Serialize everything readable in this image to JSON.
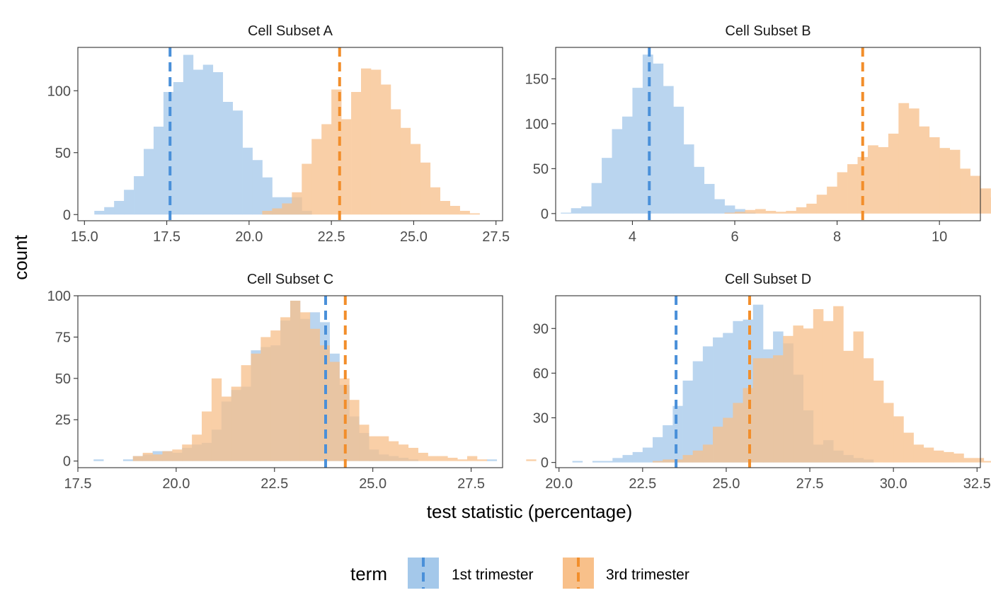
{
  "chart_data": {
    "type": "histogram",
    "xlabel": "test statistic (percentage)",
    "ylabel": "count",
    "legend": {
      "title": "term",
      "position": "bottom",
      "entries": [
        {
          "label": "1st trimester",
          "fill": "#a4c8ea",
          "line": "#4a90d9"
        },
        {
          "label": "3rd trimester",
          "fill": "#f8c08a",
          "line": "#f28e2b"
        }
      ]
    },
    "grid": false,
    "panels": [
      {
        "title": "Cell Subset A",
        "xlim": [
          14.8,
          27.7
        ],
        "ylim": [
          -5,
          135
        ],
        "xticks": [
          15.0,
          17.5,
          20.0,
          22.5,
          25.0,
          27.5
        ],
        "xtick_labels": [
          "15.0",
          "17.5",
          "20.0",
          "22.5",
          "25.0",
          "27.5"
        ],
        "yticks": [
          0,
          50,
          100
        ],
        "bin_width": 0.3,
        "series": [
          {
            "name": "1st trimester",
            "start": 15.3,
            "counts": [
              3,
              6,
              11,
              20,
              31,
              53,
              71,
              99,
              107,
              129,
              117,
              121,
              115,
              91,
              84,
              54,
              44,
              30,
              14,
              14,
              14,
              3
            ],
            "mean": 17.6
          },
          {
            "name": "3rd trimester",
            "start": 20.4,
            "counts": [
              3,
              5,
              9,
              18,
              41,
              61,
              73,
              101,
              77,
              99,
              118,
              117,
              105,
              85,
              70,
              57,
              42,
              22,
              11,
              7,
              3,
              1
            ],
            "mean": 22.75
          }
        ]
      },
      {
        "title": "Cell Subset B",
        "xlim": [
          2.5,
          10.8
        ],
        "ylim": [
          -8,
          185
        ],
        "xticks": [
          4,
          6,
          8,
          10
        ],
        "xtick_labels": [
          "4",
          "6",
          "8",
          "10"
        ],
        "yticks": [
          0,
          50,
          100,
          150
        ],
        "bin_width": 0.2,
        "series": [
          {
            "name": "1st trimester",
            "start": 2.6,
            "counts": [
              1,
              6,
              8,
              34,
              62,
              94,
              108,
              140,
              177,
              167,
              142,
              119,
              77,
              52,
              33,
              16,
              9,
              5,
              1
            ],
            "mean": 4.33
          },
          {
            "name": "3rd trimester",
            "start": 5.8,
            "counts": [
              1,
              2,
              4,
              5,
              3,
              2,
              3,
              7,
              11,
              21,
              30,
              46,
              55,
              63,
              76,
              74,
              89,
              123,
              117,
              97,
              85,
              73,
              71,
              50,
              42,
              28,
              18,
              10,
              3,
              1
            ],
            "mean": 8.5
          }
        ]
      },
      {
        "title": "Cell Subset C",
        "xlim": [
          17.5,
          28.3
        ],
        "ylim": [
          -4,
          100
        ],
        "xticks": [
          17.5,
          20.0,
          22.5,
          25.0,
          27.5
        ],
        "xtick_labels": [
          "17.5",
          "20.0",
          "22.5",
          "25.0",
          "27.5"
        ],
        "yticks": [
          0,
          25,
          50,
          75,
          100
        ],
        "bin_width": 0.25,
        "series": [
          {
            "name": "1st trimester",
            "start": 17.9,
            "counts": [
              1,
              0,
              0,
              1,
              3,
              4,
              6,
              6,
              5,
              8,
              10,
              11,
              19,
              36,
              43,
              45,
              67,
              69,
              70,
              85,
              97,
              86,
              90,
              84,
              65,
              46,
              27,
              17,
              7,
              4,
              3,
              2,
              1,
              0,
              0,
              0,
              0,
              0,
              0,
              0,
              1
            ],
            "mean": 23.8
          },
          {
            "name": "3rd trimester",
            "start": 18.9,
            "counts": [
              3,
              5,
              4,
              6,
              7,
              10,
              16,
              30,
              50,
              39,
              45,
              58,
              65,
              75,
              79,
              87,
              97,
              90,
              80,
              70,
              60,
              50,
              37,
              22,
              15,
              15,
              12,
              10,
              8,
              5,
              3,
              3,
              2,
              1,
              3,
              1,
              0,
              0,
              0,
              0,
              1
            ],
            "mean": 24.3
          }
        ]
      },
      {
        "title": "Cell Subset D",
        "xlim": [
          19.9,
          32.6
        ],
        "ylim": [
          -3.5,
          112
        ],
        "xticks": [
          20.0,
          22.5,
          25.0,
          27.5,
          30.0,
          32.5
        ],
        "xtick_labels": [
          "20.0",
          "22.5",
          "25.0",
          "27.5",
          "30.0",
          "32.5"
        ],
        "yticks": [
          0,
          30,
          60,
          90
        ],
        "bin_width": 0.3,
        "series": [
          {
            "name": "1st trimester",
            "start": 20.4,
            "counts": [
              1,
              0,
              1,
              1,
              3,
              5,
              7,
              10,
              17,
              25,
              38,
              55,
              68,
              78,
              84,
              87,
              95,
              96,
              106,
              76,
              88,
              80,
              59,
              35,
              12,
              15,
              8,
              5,
              3,
              2
            ],
            "mean": 23.5
          },
          {
            "name": "3rd trimester",
            "start": 22.8,
            "counts": [
              1,
              2,
              2,
              5,
              8,
              12,
              24,
              30,
              40,
              50,
              70,
              70,
              72,
              85,
              92,
              90,
              103,
              95,
              105,
              75,
              88,
              70,
              55,
              40,
              31,
              20,
              12,
              10,
              8,
              7,
              6,
              3,
              3,
              1,
              1,
              1
            ],
            "mean": 25.7
          }
        ]
      }
    ]
  }
}
